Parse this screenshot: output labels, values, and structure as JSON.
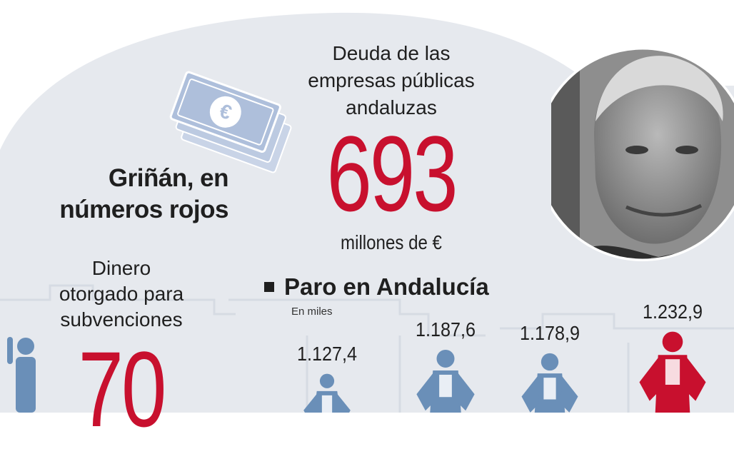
{
  "headline": [
    "Griñán, en",
    "números rojos"
  ],
  "debt": {
    "label_lines": [
      "Deuda de las",
      "empresas públicas",
      "andaluzas"
    ],
    "value": "693",
    "unit": "millones de €"
  },
  "subsidies": {
    "label_lines": [
      "Dinero",
      "otorgado para",
      "subvenciones"
    ],
    "value": "70"
  },
  "colors": {
    "accent_red": "#c8102e",
    "figure_blue": "#6a8fb8",
    "bg_blob": "#e6e9ee",
    "note_blue": "#b7c5de"
  },
  "icons": [
    "euro-banknote-icon",
    "person-figure-icon",
    "portrait-photo"
  ],
  "chart_data": {
    "type": "bar",
    "title": "Paro en Andalucía",
    "subtitle": "En miles",
    "series": [
      {
        "values": [
          1127.4,
          1187.6,
          1178.9,
          1232.9
        ]
      }
    ],
    "value_labels": [
      "1.127,4",
      "1.187,6",
      "1.178,9",
      "1.232,9"
    ],
    "highlight_index": 3
  }
}
